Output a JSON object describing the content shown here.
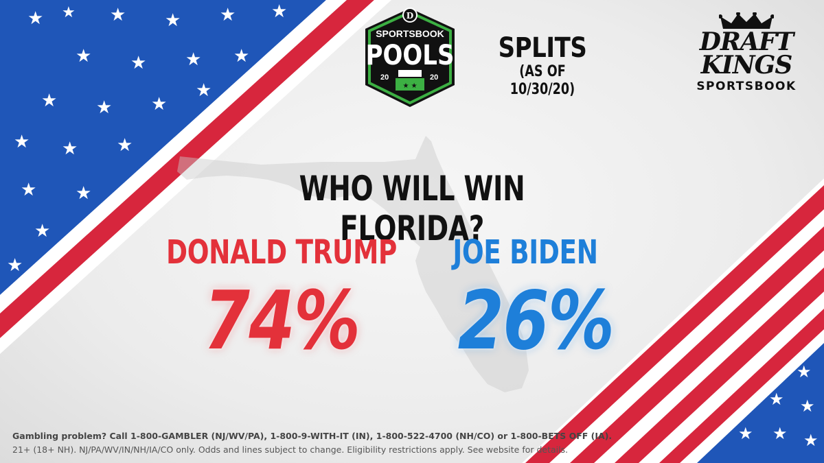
{
  "header": {
    "pools_logo": {
      "top_text": "SPORTSBOOK",
      "main_text": "POOLS",
      "year_left": "20",
      "year_right": "20"
    },
    "splits_title": "SPLITS",
    "splits_date": "(AS OF 10/30/20)",
    "brand": {
      "line1": "DRAFT",
      "line2": "KINGS",
      "line3": "SPORTSBOOK"
    }
  },
  "main": {
    "question": "WHO WILL WIN FLORIDA?",
    "candidates": [
      {
        "name": "DONALD TRUMP",
        "percent": "74%",
        "color": "#e3313a"
      },
      {
        "name": "JOE BIDEN",
        "percent": "26%",
        "color": "#1e7fd9"
      }
    ]
  },
  "footer": {
    "line1": "Gambling problem? Call 1-800-GAMBLER (NJ/WV/PA), 1-800-9-WITH-IT (IN), 1-800-522-4700 (NH/CO) or 1-800-BETS OFF (IA).",
    "line2": "21+ (18+ NH). NJ/PA/WV/IN/NH/IA/CO only. Odds and lines subject to change. Eligibility restrictions apply. See website for details."
  },
  "colors": {
    "flag_red": "#d7263d",
    "flag_blue": "#1f56b8",
    "pools_green": "#3cb043"
  }
}
